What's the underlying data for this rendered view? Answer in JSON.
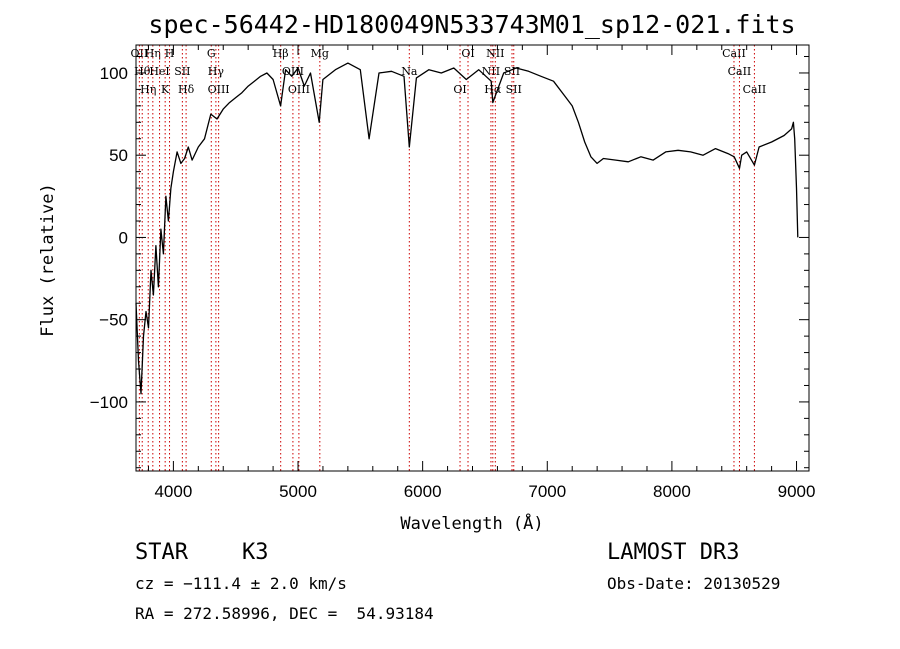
{
  "chart_data": {
    "type": "line",
    "title": "spec-56442-HD180049N533743M01_sp12-021.fits",
    "xlabel": "Wavelength (Å)",
    "ylabel": "Flux (relative)",
    "xlim": [
      3700,
      9100
    ],
    "ylim": [
      -142,
      117
    ],
    "x_ticks": [
      4000,
      5000,
      6000,
      7000,
      8000,
      9000
    ],
    "y_ticks": [
      -100,
      -50,
      0,
      50,
      100
    ],
    "x_tick_labels": [
      "4000",
      "5000",
      "6000",
      "7000",
      "8000",
      "9000"
    ],
    "y_tick_labels": [
      "−100",
      "−50",
      "0",
      "50",
      "100"
    ],
    "grid": false,
    "series": [
      {
        "color": "#000000",
        "x": [
          3700,
          3720,
          3740,
          3760,
          3780,
          3800,
          3820,
          3840,
          3860,
          3880,
          3900,
          3920,
          3940,
          3960,
          3980,
          4000,
          4030,
          4060,
          4090,
          4120,
          4150,
          4200,
          4250,
          4300,
          4350,
          4400,
          4450,
          4500,
          4550,
          4600,
          4650,
          4700,
          4750,
          4800,
          4860,
          4900,
          4950,
          5000,
          5050,
          5100,
          5170,
          5200,
          5300,
          5400,
          5500,
          5570,
          5650,
          5750,
          5850,
          5893,
          5950,
          6050,
          6150,
          6250,
          6350,
          6450,
          6550,
          6563,
          6650,
          6750,
          6850,
          6950,
          7050,
          7150,
          7200,
          7250,
          7300,
          7350,
          7400,
          7450,
          7550,
          7650,
          7750,
          7850,
          7950,
          8050,
          8150,
          8250,
          8350,
          8450,
          8500,
          8542,
          8560,
          8600,
          8662,
          8700,
          8800,
          8900,
          8960,
          8975,
          8985,
          9000,
          9010
        ],
        "y": [
          -40,
          -75,
          -95,
          -60,
          -45,
          -55,
          -20,
          -35,
          -5,
          -30,
          5,
          -10,
          25,
          10,
          30,
          40,
          52,
          45,
          48,
          55,
          47,
          55,
          60,
          75,
          72,
          78,
          82,
          85,
          88,
          92,
          95,
          98,
          100,
          96,
          80,
          102,
          98,
          103,
          92,
          100,
          70,
          96,
          102,
          106,
          102,
          60,
          100,
          101,
          98,
          55,
          97,
          102,
          100,
          103,
          96,
          102,
          95,
          82,
          100,
          103,
          101,
          98,
          95,
          85,
          80,
          70,
          58,
          49,
          45,
          48,
          47,
          46,
          49,
          47,
          52,
          53,
          52,
          50,
          54,
          51,
          49,
          42,
          50,
          52,
          44,
          55,
          58,
          62,
          66,
          70,
          60,
          30,
          0
        ]
      }
    ],
    "line_markers": [
      {
        "x": 3727,
        "labels": [
          "OII"
        ]
      },
      {
        "x": 3750,
        "labels": [
          "Hθ"
        ]
      },
      {
        "x": 3798,
        "labels": [
          "Hη"
        ]
      },
      {
        "x": 3835,
        "labels": [
          "Hη"
        ]
      },
      {
        "x": 3889,
        "labels": [
          "HeI"
        ]
      },
      {
        "x": 3934,
        "labels": [
          "K"
        ]
      },
      {
        "x": 3969,
        "labels": [
          "H"
        ]
      },
      {
        "x": 4072,
        "labels": [
          "SII"
        ]
      },
      {
        "x": 4102,
        "labels": [
          "Hδ"
        ]
      },
      {
        "x": 4304,
        "labels": [
          "G"
        ]
      },
      {
        "x": 4341,
        "labels": [
          "Hγ"
        ]
      },
      {
        "x": 4363,
        "labels": [
          "OIII"
        ]
      },
      {
        "x": 4861,
        "labels": [
          "Hβ"
        ]
      },
      {
        "x": 4959,
        "labels": [
          "OIII"
        ]
      },
      {
        "x": 5007,
        "labels": [
          "OIII"
        ]
      },
      {
        "x": 5175,
        "labels": [
          "Mg"
        ]
      },
      {
        "x": 5893,
        "labels": [
          "Na"
        ]
      },
      {
        "x": 6300,
        "labels": [
          "OI"
        ]
      },
      {
        "x": 6364,
        "labels": [
          "OI"
        ]
      },
      {
        "x": 6548,
        "labels": [
          "NII"
        ]
      },
      {
        "x": 6563,
        "labels": [
          "Hα"
        ]
      },
      {
        "x": 6583,
        "labels": [
          "NII"
        ]
      },
      {
        "x": 6717,
        "labels": [
          "SII"
        ]
      },
      {
        "x": 6731,
        "labels": [
          "SII"
        ]
      },
      {
        "x": 8498,
        "labels": [
          "CaII"
        ]
      },
      {
        "x": 8542,
        "labels": [
          "CaII"
        ]
      },
      {
        "x": 8662,
        "labels": [
          "CaII"
        ]
      }
    ]
  },
  "info": {
    "object_class": "STAR",
    "subclass": "K3",
    "survey": "LAMOST DR3",
    "redshift_line": "cz = −111.4 ± 2.0 km/s",
    "obs_date_line": "Obs-Date: 20130529",
    "coords_line": "RA = 272.58996, DEC =  54.93184"
  }
}
